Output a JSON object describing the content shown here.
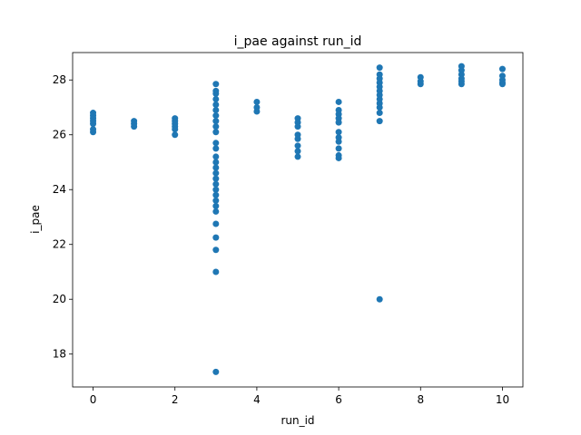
{
  "chart_data": {
    "type": "scatter",
    "title": "i_pae against run_id",
    "xlabel": "run_id",
    "ylabel": "i_pae",
    "xlim": [
      -0.5,
      10.5
    ],
    "ylim": [
      16.8,
      29.0
    ],
    "xticks": [
      0,
      2,
      4,
      6,
      8,
      10
    ],
    "yticks": [
      18,
      20,
      22,
      24,
      26,
      28
    ],
    "grid": false,
    "color": "#1f77b4",
    "series": [
      {
        "name": "i_pae",
        "points": [
          {
            "x": 0,
            "y": 26.8
          },
          {
            "x": 0,
            "y": 26.7
          },
          {
            "x": 0,
            "y": 26.6
          },
          {
            "x": 0,
            "y": 26.5
          },
          {
            "x": 0,
            "y": 26.4
          },
          {
            "x": 0,
            "y": 26.2
          },
          {
            "x": 0,
            "y": 26.1
          },
          {
            "x": 1,
            "y": 26.5
          },
          {
            "x": 1,
            "y": 26.4
          },
          {
            "x": 1,
            "y": 26.3
          },
          {
            "x": 2,
            "y": 26.6
          },
          {
            "x": 2,
            "y": 26.5
          },
          {
            "x": 2,
            "y": 26.4
          },
          {
            "x": 2,
            "y": 26.3
          },
          {
            "x": 2,
            "y": 26.2
          },
          {
            "x": 2,
            "y": 26.0
          },
          {
            "x": 3,
            "y": 27.85
          },
          {
            "x": 3,
            "y": 27.6
          },
          {
            "x": 3,
            "y": 27.5
          },
          {
            "x": 3,
            "y": 27.3
          },
          {
            "x": 3,
            "y": 27.1
          },
          {
            "x": 3,
            "y": 26.9
          },
          {
            "x": 3,
            "y": 26.7
          },
          {
            "x": 3,
            "y": 26.5
          },
          {
            "x": 3,
            "y": 26.3
          },
          {
            "x": 3,
            "y": 26.1
          },
          {
            "x": 3,
            "y": 25.7
          },
          {
            "x": 3,
            "y": 25.5
          },
          {
            "x": 3,
            "y": 25.2
          },
          {
            "x": 3,
            "y": 25.0
          },
          {
            "x": 3,
            "y": 24.8
          },
          {
            "x": 3,
            "y": 24.6
          },
          {
            "x": 3,
            "y": 24.4
          },
          {
            "x": 3,
            "y": 24.2
          },
          {
            "x": 3,
            "y": 24.0
          },
          {
            "x": 3,
            "y": 23.8
          },
          {
            "x": 3,
            "y": 23.6
          },
          {
            "x": 3,
            "y": 23.4
          },
          {
            "x": 3,
            "y": 23.2
          },
          {
            "x": 3,
            "y": 22.75
          },
          {
            "x": 3,
            "y": 22.25
          },
          {
            "x": 3,
            "y": 21.8
          },
          {
            "x": 3,
            "y": 21.0
          },
          {
            "x": 3,
            "y": 17.35
          },
          {
            "x": 4,
            "y": 27.2
          },
          {
            "x": 4,
            "y": 27.0
          },
          {
            "x": 4,
            "y": 26.85
          },
          {
            "x": 5,
            "y": 26.6
          },
          {
            "x": 5,
            "y": 26.45
          },
          {
            "x": 5,
            "y": 26.3
          },
          {
            "x": 5,
            "y": 26.0
          },
          {
            "x": 5,
            "y": 25.85
          },
          {
            "x": 5,
            "y": 25.6
          },
          {
            "x": 5,
            "y": 25.4
          },
          {
            "x": 5,
            "y": 25.2
          },
          {
            "x": 6,
            "y": 27.2
          },
          {
            "x": 6,
            "y": 26.9
          },
          {
            "x": 6,
            "y": 26.75
          },
          {
            "x": 6,
            "y": 26.6
          },
          {
            "x": 6,
            "y": 26.45
          },
          {
            "x": 6,
            "y": 26.1
          },
          {
            "x": 6,
            "y": 25.9
          },
          {
            "x": 6,
            "y": 25.75
          },
          {
            "x": 6,
            "y": 25.5
          },
          {
            "x": 6,
            "y": 25.25
          },
          {
            "x": 6,
            "y": 25.15
          },
          {
            "x": 7,
            "y": 28.45
          },
          {
            "x": 7,
            "y": 28.2
          },
          {
            "x": 7,
            "y": 28.05
          },
          {
            "x": 7,
            "y": 27.9
          },
          {
            "x": 7,
            "y": 27.75
          },
          {
            "x": 7,
            "y": 27.6
          },
          {
            "x": 7,
            "y": 27.45
          },
          {
            "x": 7,
            "y": 27.3
          },
          {
            "x": 7,
            "y": 27.15
          },
          {
            "x": 7,
            "y": 27.0
          },
          {
            "x": 7,
            "y": 26.8
          },
          {
            "x": 7,
            "y": 26.5
          },
          {
            "x": 7,
            "y": 20.0
          },
          {
            "x": 8,
            "y": 28.1
          },
          {
            "x": 8,
            "y": 27.95
          },
          {
            "x": 8,
            "y": 27.85
          },
          {
            "x": 9,
            "y": 28.5
          },
          {
            "x": 9,
            "y": 28.35
          },
          {
            "x": 9,
            "y": 28.2
          },
          {
            "x": 9,
            "y": 28.05
          },
          {
            "x": 9,
            "y": 27.95
          },
          {
            "x": 9,
            "y": 27.85
          },
          {
            "x": 10,
            "y": 28.4
          },
          {
            "x": 10,
            "y": 28.15
          },
          {
            "x": 10,
            "y": 28.0
          },
          {
            "x": 10,
            "y": 27.9
          },
          {
            "x": 10,
            "y": 27.85
          }
        ]
      }
    ]
  }
}
